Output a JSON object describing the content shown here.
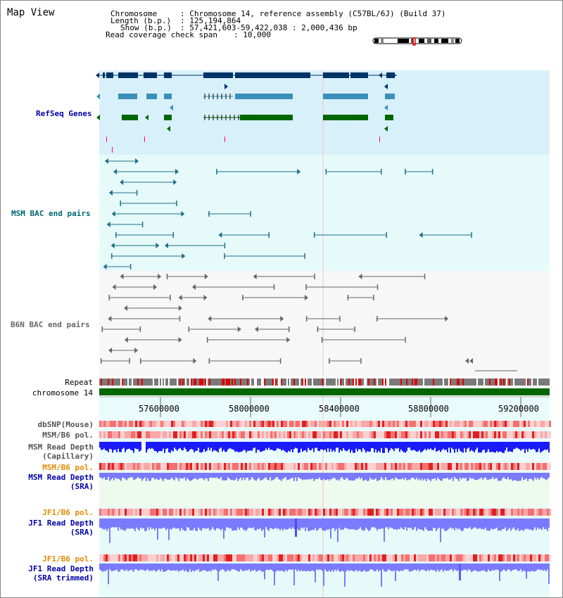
{
  "page_title": "Map View",
  "header": {
    "chromosome_label": "Chromosome",
    "chromosome_value": ": Chromosome 14, reference assembly (C57BL/6J) (Build 37)",
    "length_label": "Length (b.p.)",
    "length_value": ": 125,194,864",
    "show_label": "Show (b.p.)",
    "show_value": ": 57,421,603-59,422,038 : 2,000,436 bp",
    "coverage_label": "Read coverage check span",
    "coverage_value": ": 10,000"
  },
  "tracks": {
    "refseq": "RefSeq Genes",
    "msm_bac": "MSM BAC end pairs",
    "b6n_bac": "B6N BAC end pairs",
    "repeat": "Repeat",
    "chromosome": "chromosome 14",
    "dbsnp": "dbSNP(Mouse)",
    "msm_b6_pol": "MSM/B6 pol.",
    "msm_depth_cap_1": "MSM Read Depth",
    "msm_depth_cap_2": "(Capillary)",
    "msm_b6_pol_sra": "MSM/B6 pol.",
    "msm_depth_sra_1": "MSM Read Depth",
    "msm_depth_sra_2": "(SRA)",
    "jf1_b6_pol": "JF1/B6 pol.",
    "jf1_depth_sra_1": "JF1 Read Depth",
    "jf1_depth_sra_2": "(SRA)",
    "jf1_b6_pol_trim": "JF1/B6 pol.",
    "jf1_depth_trim_1": "JF1 Read Depth",
    "jf1_depth_trim_2": "(SRA trimmed)"
  },
  "axis": {
    "ticks": [
      "57600000",
      "58000000",
      "58400000",
      "58800000",
      "59200000"
    ]
  },
  "colors": {
    "refseq_bg": "#d8f0fa",
    "msm_bg": "#e6fafa",
    "b6n_bg": "#f7f7f7",
    "gene_dark": "#003366",
    "gene_mid": "#3b8fb8",
    "gene_green": "#006600",
    "msm_pair": "#1f6f8b",
    "b6n_pair": "#555555",
    "chromosome_bar": "#006600",
    "depth_blue": "#1a1aff",
    "depth_light": "#7a7aff",
    "label_blue": "#0000aa",
    "label_teal": "#006677",
    "label_orange": "#e08a00"
  }
}
